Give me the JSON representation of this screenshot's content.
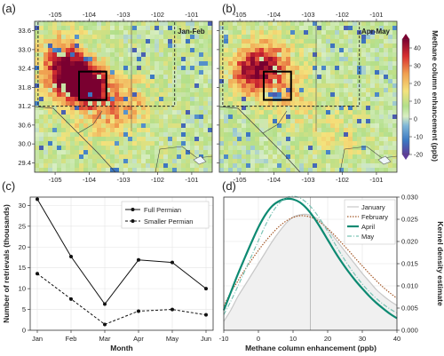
{
  "chart_data": [
    {
      "panel": "(a)",
      "type": "heatmap",
      "season_label": "Jan-Feb",
      "x_ticks": [
        "-105",
        "-104",
        "-103",
        "-102",
        "-101"
      ],
      "y_ticks": [
        "33.6",
        "33.0",
        "32.4",
        "31.8",
        "31.2",
        "30.6",
        "30.0",
        "29.4"
      ],
      "xlim": [
        -105.6,
        -100.4
      ],
      "ylim": [
        29.1,
        33.9
      ],
      "full_permian_box": {
        "lon": [
          -105.5,
          -101.5
        ],
        "lat": [
          31.2,
          33.9
        ]
      },
      "smaller_permian_box": {
        "lon": [
          -104.3,
          -103.5
        ],
        "lat": [
          31.4,
          32.3
        ]
      },
      "hotspots": [
        [
          -104.5,
          32.1,
          45,
          0.5
        ],
        [
          -104.0,
          31.8,
          35,
          0.35
        ],
        [
          -104.8,
          32.9,
          20,
          0.5
        ],
        [
          -103.0,
          31.3,
          15,
          0.6
        ],
        [
          -103.8,
          30.9,
          10,
          0.8
        ]
      ],
      "base_level": 5
    },
    {
      "panel": "(b)",
      "type": "heatmap",
      "season_label": "Apr-May",
      "x_ticks": [
        "-105",
        "-104",
        "-103",
        "-102",
        "-101"
      ],
      "y_ticks": [],
      "xlim": [
        -105.6,
        -100.4
      ],
      "ylim": [
        29.1,
        33.9
      ],
      "full_permian_box": {
        "lon": [
          -105.5,
          -101.5
        ],
        "lat": [
          31.2,
          33.9
        ]
      },
      "smaller_permian_box": {
        "lon": [
          -104.3,
          -103.5
        ],
        "lat": [
          31.4,
          32.3
        ]
      },
      "hotspots": [
        [
          -104.2,
          32.6,
          25,
          0.6
        ],
        [
          -104.7,
          32.2,
          22,
          0.5
        ],
        [
          -103.5,
          31.4,
          12,
          0.6
        ],
        [
          -102.0,
          30.3,
          8,
          0.7
        ]
      ],
      "base_level": 4
    },
    {
      "panel": "(c)",
      "type": "line",
      "categories": [
        "Jan",
        "Feb",
        "Mar",
        "Apr",
        "May",
        "Jun"
      ],
      "series": [
        {
          "name": "Full Permian",
          "values": [
            31.5,
            17.7,
            6.3,
            16.9,
            16.3,
            10.0
          ],
          "style": "solid"
        },
        {
          "name": "Smaller Permian",
          "values": [
            13.6,
            7.5,
            1.4,
            4.6,
            5.0,
            3.7
          ],
          "style": "dashed"
        }
      ],
      "xlabel": "Month",
      "ylabel": "Number of retrievals (thousands)",
      "ylim": [
        0,
        32
      ],
      "y_ticks": [
        0,
        5,
        10,
        15,
        20,
        25,
        30
      ],
      "grid": true,
      "legend": "top-right"
    },
    {
      "panel": "(d)",
      "type": "area",
      "x": [
        -10,
        -8,
        -6,
        -4,
        -2,
        0,
        2,
        4,
        6,
        8,
        10,
        12,
        14,
        16,
        18,
        20,
        22,
        24,
        26,
        28,
        30,
        32,
        34,
        36,
        38,
        40
      ],
      "series": [
        {
          "name": "January",
          "values": [
            0.002,
            0.0045,
            0.0075,
            0.01,
            0.0125,
            0.015,
            0.0175,
            0.02,
            0.0222,
            0.0241,
            0.0255,
            0.026,
            0.0261,
            0.0256,
            0.0245,
            0.0228,
            0.0208,
            0.0188,
            0.0168,
            0.0148,
            0.0128,
            0.011,
            0.0092,
            0.0078,
            0.0066,
            0.0056
          ],
          "color": "#c7c7c7",
          "style": "solid",
          "fill": "#f0f0f0"
        },
        {
          "name": "February",
          "values": [
            0.0055,
            0.0085,
            0.011,
            0.0135,
            0.0158,
            0.018,
            0.02,
            0.0218,
            0.0234,
            0.0246,
            0.0254,
            0.0258,
            0.0257,
            0.0252,
            0.0242,
            0.0229,
            0.0214,
            0.0197,
            0.018,
            0.0162,
            0.0145,
            0.0128,
            0.0112,
            0.0097,
            0.0084,
            0.0072
          ],
          "color": "#a55a2a",
          "style": "dotted"
        },
        {
          "name": "April",
          "values": [
            0.0045,
            0.0085,
            0.0125,
            0.0162,
            0.0198,
            0.0232,
            0.026,
            0.028,
            0.0291,
            0.0296,
            0.0295,
            0.0288,
            0.0274,
            0.0254,
            0.023,
            0.0204,
            0.0178,
            0.0154,
            0.0132,
            0.0112,
            0.0094,
            0.0077,
            0.0062,
            0.0049,
            0.0037,
            0.0027
          ],
          "color": "#0d8a72",
          "style": "solid"
        },
        {
          "name": "May",
          "values": [
            0.0035,
            0.0065,
            0.0098,
            0.0132,
            0.0167,
            0.0202,
            0.0236,
            0.0265,
            0.0286,
            0.0298,
            0.0302,
            0.0298,
            0.0287,
            0.027,
            0.0248,
            0.0223,
            0.0196,
            0.017,
            0.0146,
            0.0124,
            0.0104,
            0.0087,
            0.0072,
            0.0059,
            0.0048,
            0.0039
          ],
          "color": "#7bc3b5",
          "style": "dashdot"
        }
      ],
      "xlabel": "Methane column enhancement (ppb)",
      "ylabel": "Kernel density estimate",
      "xlim": [
        -10,
        40
      ],
      "ylim": [
        0,
        0.03
      ],
      "x_ticks": [
        -10,
        0,
        10,
        20,
        30,
        40
      ],
      "y_ticks": [
        "0.000",
        "0.005",
        "0.010",
        "0.015",
        "0.020",
        "0.025",
        "0.030"
      ],
      "vline": 15,
      "grid": true,
      "legend": "top-right"
    }
  ],
  "colorbar": {
    "label": "Methane column enhancement (ppb)",
    "ticks": [
      "40",
      "30",
      "20",
      "10",
      "0",
      "-10",
      "-20"
    ],
    "range": [
      -20,
      45
    ]
  },
  "page": {
    "panel_a_letter": "(a)",
    "panel_b_letter": "(b)",
    "panel_c_letter": "(c)",
    "panel_d_letter": "(d)"
  }
}
